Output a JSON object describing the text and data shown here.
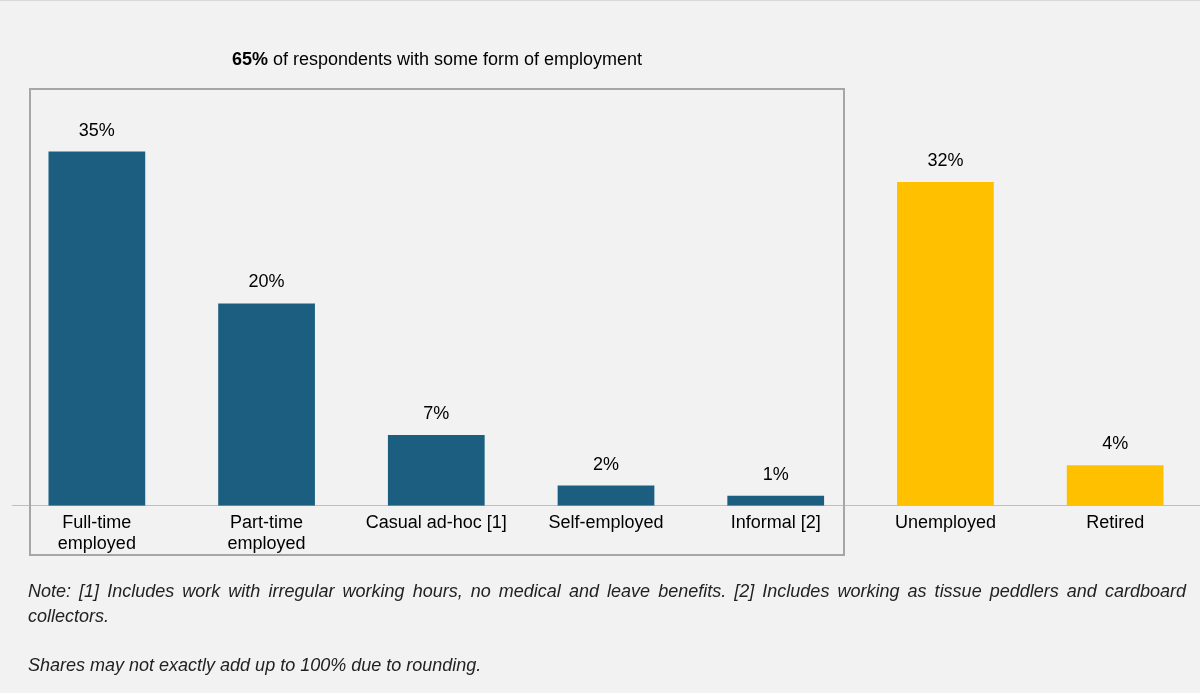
{
  "chart_data": {
    "type": "bar",
    "categories": [
      "Full-time employed",
      "Part-time employed",
      "Casual ad-hoc [1]",
      "Self-employed",
      "Informal [2]",
      "Unemployed",
      "Retired"
    ],
    "values": [
      35,
      20,
      7,
      2,
      1,
      32,
      4
    ],
    "colors": [
      "#1b5e7f",
      "#1b5e7f",
      "#1b5e7f",
      "#1b5e7f",
      "#1b5e7f",
      "#ffc000",
      "#ffc000"
    ],
    "value_labels": [
      "35%",
      "20%",
      "7%",
      "2%",
      "1%",
      "32%",
      "4%"
    ],
    "grid": false,
    "legend": false,
    "annotations": [
      "65% of respondents with some form of employment",
      "Note: [1] Includes work with irregular working hours, no medical and leave benefits. [2] Includes working as tissue peddlers and cardboard collectors.",
      "Shares may not exactly add up to 100% due to rounding."
    ]
  }
}
